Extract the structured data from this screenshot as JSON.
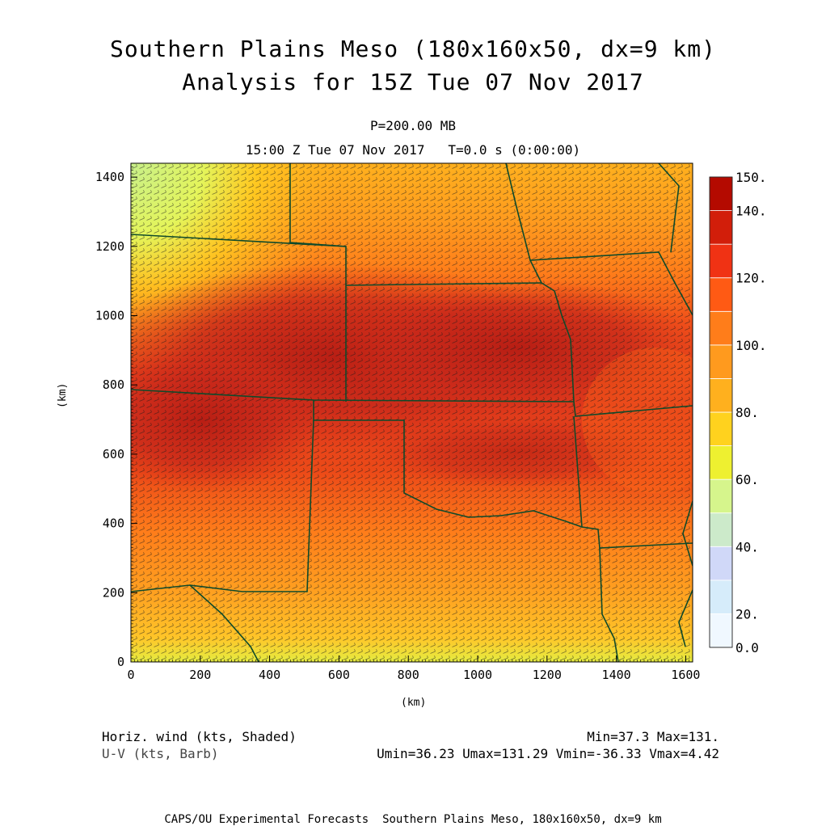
{
  "titles": {
    "line1": "Southern Plains Meso (180x160x50, dx=9 km)",
    "line2": "Analysis for 15Z Tue 07 Nov 2017",
    "level": "P=200.00 MB",
    "valid": "15:00 Z Tue 07 Nov 2017   T=0.0 s (0:00:00)"
  },
  "axes": {
    "xlabel": "(km)",
    "ylabel": "(km)",
    "xticks": [
      "0",
      "200",
      "400",
      "600",
      "800",
      "1000",
      "1200",
      "1400",
      "1600"
    ],
    "yticks": [
      "0",
      "200",
      "400",
      "600",
      "800",
      "1000",
      "1200",
      "1400"
    ]
  },
  "colorbar": {
    "labels": [
      "150.",
      "140.",
      "120.",
      "100.",
      "80.",
      "60.",
      "40.",
      "20.",
      "0.0"
    ],
    "colors": [
      "#f0f8ff",
      "#d6ecfa",
      "#d0d8f8",
      "#cceaca",
      "#d6f58c",
      "#eef030",
      "#ffd21e",
      "#ffb01e",
      "#ff9a1e",
      "#ff7d1a",
      "#ff5a14",
      "#f03214",
      "#d21e0a",
      "#b40a00"
    ]
  },
  "fields": {
    "line1": "Horiz. wind (kts, Shaded)",
    "line2": "U-V (kts, Barb)",
    "minmax": "Min=37.3 Max=131.",
    "uv": "Umin=36.23 Umax=131.29 Vmin=-36.33 Vmax=4.42"
  },
  "footer": "CAPS/OU Experimental Forecasts  Southern Plains Meso, 180x160x50, dx=9 km",
  "chart_data": {
    "type": "heatmap",
    "title": "Southern Plains Meso (180x160x50, dx=9 km)",
    "subtitle": "Analysis for 15Z Tue 07 Nov 2017",
    "xlabel": "(km)",
    "ylabel": "(km)",
    "xlim": [
      0,
      1620
    ],
    "ylim": [
      0,
      1440
    ],
    "field": "Horiz. wind (kts, Shaded)",
    "overlay": "U-V (kts, Barb)",
    "min": 37.3,
    "max": 131,
    "umin": 36.23,
    "umax": 131.29,
    "vmin": -36.33,
    "vmax": 4.42,
    "colorbar_range": [
      0,
      150
    ],
    "jet_core_kts": 128,
    "jet_axis_y_km": [
      [
        0,
        820
      ],
      [
        400,
        810
      ],
      [
        800,
        790
      ],
      [
        1200,
        720
      ],
      [
        1600,
        640
      ]
    ]
  }
}
